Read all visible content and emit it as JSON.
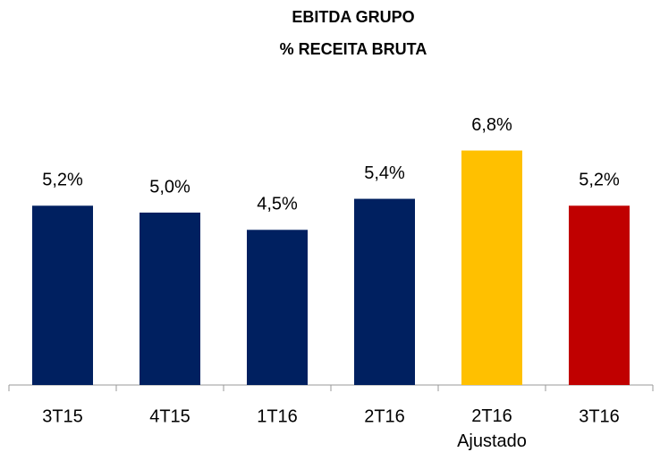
{
  "chart_data": {
    "type": "bar",
    "title": "EBITDA GRUPO",
    "subtitle": "% RECEITA BRUTA",
    "categories": [
      "3T15",
      "4T15",
      "1T16",
      "2T16",
      "2T16 Ajustado",
      "3T16"
    ],
    "values": [
      5.2,
      5.0,
      4.5,
      5.4,
      6.8,
      5.2
    ],
    "value_labels": [
      "5,2%",
      "5,0%",
      "4,5%",
      "5,4%",
      "6,8%",
      "5,2%"
    ],
    "colors": [
      "#002060",
      "#002060",
      "#002060",
      "#002060",
      "#FFC000",
      "#C00000"
    ]
  }
}
